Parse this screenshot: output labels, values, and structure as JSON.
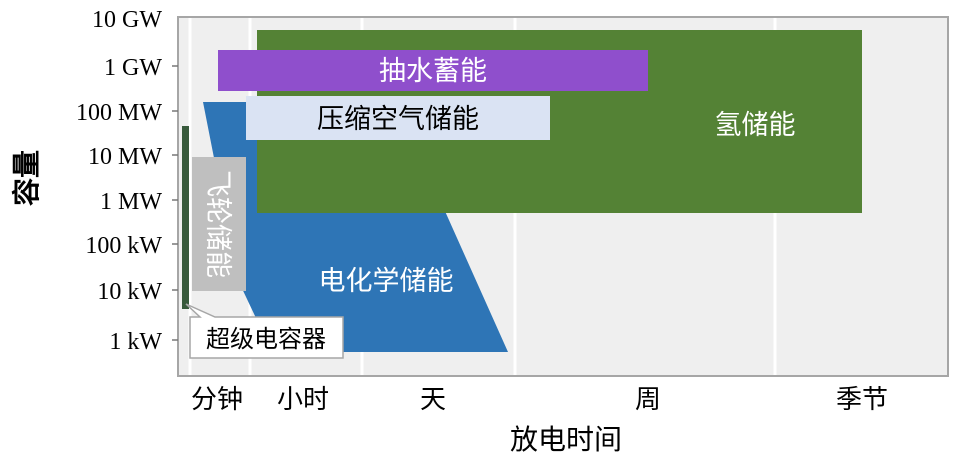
{
  "ylabel": "容量",
  "xlabel": "放电时间",
  "y_ticks": [
    "10 GW",
    "1 GW",
    "100 MW",
    "10 MW",
    "1 MW",
    "100 kW",
    "10 kW",
    "1 kW"
  ],
  "x_ticks": [
    "分钟",
    "小时",
    "天",
    "周",
    "季节"
  ],
  "technologies": {
    "hydrogen": {
      "label": "氢储能",
      "color": "#548235"
    },
    "pumped_hydro": {
      "label": "抽水蓄能",
      "color": "#8f4fcc"
    },
    "compressed_air": {
      "label": "压缩空气储能",
      "color": "#dae3f3"
    },
    "electrochemical": {
      "label": "电化学储能",
      "color": "#2e75b6"
    },
    "flywheel": {
      "label": "飞轮储能",
      "color": "#bfbfbf"
    },
    "supercapacitor": {
      "label": "超级电容器",
      "color": "#385a3c"
    }
  },
  "colors": {
    "plot_background": "#efefef",
    "grid": "#ffffff",
    "frame": "#a6a6a6"
  }
}
